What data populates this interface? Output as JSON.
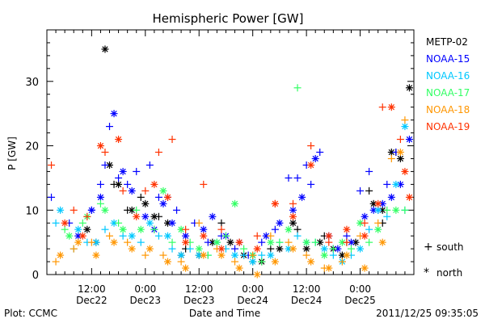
{
  "chart_data": {
    "type": "scatter",
    "title": "Hemispheric Power [GW]",
    "xlabel": "Date and Time",
    "ylabel": "P [GW]",
    "xlim_hours": [
      -22,
      60
    ],
    "ylim": [
      0,
      38
    ],
    "yticks": [
      0,
      10,
      20,
      30
    ],
    "xtick_labels": [
      {
        "h": -12,
        "time": "12:00",
        "date": "Dec22"
      },
      {
        "h": 0,
        "time": "0:00",
        "date": "Dec23"
      },
      {
        "h": 12,
        "time": "12:00",
        "date": "Dec23"
      },
      {
        "h": 24,
        "time": "0:00",
        "date": "Dec24"
      },
      {
        "h": 36,
        "time": "12:00",
        "date": "Dec24"
      },
      {
        "h": 48,
        "time": "0:00",
        "date": "Dec25"
      }
    ],
    "legend": {
      "placement": "right",
      "series_names": [
        "METP-02",
        "NOAA-15",
        "NOAA-16",
        "NOAA-17",
        "NOAA-18",
        "NOAA-19"
      ],
      "markers": [
        {
          "symbol": "+",
          "label": "south"
        },
        {
          "symbol": "*",
          "label": "north"
        }
      ]
    },
    "series": [
      {
        "name": "METP-02",
        "color": "#000000",
        "south": [
          [
            -7,
            14
          ],
          [
            -4,
            10
          ],
          [
            -1,
            12
          ],
          [
            3,
            9
          ],
          [
            9,
            4
          ],
          [
            17,
            8
          ],
          [
            24,
            2
          ],
          [
            28,
            4
          ],
          [
            34,
            7
          ],
          [
            40,
            6
          ],
          [
            45,
            5
          ],
          [
            50,
            13
          ],
          [
            53,
            8
          ],
          [
            56,
            19
          ]
        ],
        "north": [
          [
            -13,
            7
          ],
          [
            -11,
            5
          ],
          [
            -9,
            35
          ],
          [
            -8,
            17
          ],
          [
            -6,
            14
          ],
          [
            -3,
            10
          ],
          [
            0,
            11
          ],
          [
            2,
            9
          ],
          [
            5,
            8
          ],
          [
            8,
            3
          ],
          [
            12,
            3
          ],
          [
            15,
            5
          ],
          [
            19,
            5
          ],
          [
            22,
            3
          ],
          [
            26,
            2
          ],
          [
            30,
            4
          ],
          [
            33,
            8
          ],
          [
            36,
            4
          ],
          [
            39,
            5
          ],
          [
            42,
            4
          ],
          [
            44,
            3
          ],
          [
            47,
            5
          ],
          [
            51,
            11
          ],
          [
            53,
            10
          ],
          [
            55,
            19
          ],
          [
            57,
            18
          ],
          [
            59,
            29
          ]
        ]
      },
      {
        "name": "NOAA-15",
        "color": "#0000ff",
        "south": [
          [
            -21,
            12
          ],
          [
            -17,
            8
          ],
          [
            -12,
            10
          ],
          [
            -10,
            14
          ],
          [
            -9,
            17
          ],
          [
            -8,
            23
          ],
          [
            -6,
            15
          ],
          [
            -4,
            14
          ],
          [
            -2,
            16
          ],
          [
            1,
            17
          ],
          [
            3,
            12
          ],
          [
            5,
            12
          ],
          [
            7,
            10
          ],
          [
            11,
            8
          ],
          [
            14,
            5
          ],
          [
            17,
            6
          ],
          [
            20,
            4
          ],
          [
            23,
            3
          ],
          [
            26,
            5
          ],
          [
            29,
            7
          ],
          [
            32,
            15
          ],
          [
            34,
            15
          ],
          [
            36,
            17
          ],
          [
            37,
            14
          ],
          [
            39,
            19
          ],
          [
            42,
            4
          ],
          [
            45,
            6
          ],
          [
            48,
            13
          ],
          [
            50,
            16
          ],
          [
            52,
            10
          ],
          [
            54,
            14
          ],
          [
            56,
            19
          ]
        ],
        "north": [
          [
            -15,
            6
          ],
          [
            -12,
            10
          ],
          [
            -10,
            12
          ],
          [
            -7,
            25
          ],
          [
            -5,
            16
          ],
          [
            -3,
            13
          ],
          [
            0,
            9
          ],
          [
            2,
            7
          ],
          [
            4,
            11
          ],
          [
            6,
            8
          ],
          [
            9,
            6
          ],
          [
            13,
            7
          ],
          [
            15,
            9
          ],
          [
            18,
            6
          ],
          [
            21,
            5
          ],
          [
            24,
            3
          ],
          [
            27,
            6
          ],
          [
            30,
            8
          ],
          [
            33,
            10
          ],
          [
            35,
            12
          ],
          [
            38,
            18
          ],
          [
            41,
            6
          ],
          [
            43,
            4
          ],
          [
            46,
            5
          ],
          [
            49,
            9
          ],
          [
            51,
            10
          ],
          [
            53,
            11
          ],
          [
            55,
            12
          ],
          [
            57,
            14
          ],
          [
            59,
            21
          ]
        ]
      },
      {
        "name": "NOAA-16",
        "color": "#00c8ff",
        "south": [
          [
            -20,
            8
          ],
          [
            -16,
            4
          ],
          [
            -13,
            5
          ],
          [
            -9,
            7
          ],
          [
            -5,
            6
          ],
          [
            -1,
            5
          ],
          [
            3,
            6
          ],
          [
            6,
            4
          ],
          [
            10,
            4
          ],
          [
            14,
            3
          ],
          [
            18,
            4
          ],
          [
            22,
            3
          ],
          [
            26,
            3
          ],
          [
            30,
            5
          ],
          [
            34,
            6
          ],
          [
            38,
            5
          ],
          [
            42,
            3
          ],
          [
            46,
            3
          ],
          [
            50,
            7
          ],
          [
            54,
            9
          ],
          [
            58,
            10
          ]
        ],
        "north": [
          [
            -19,
            10
          ],
          [
            -15,
            7
          ],
          [
            -11,
            5
          ],
          [
            -7,
            8
          ],
          [
            -3,
            6
          ],
          [
            1,
            8
          ],
          [
            5,
            6
          ],
          [
            8,
            3
          ],
          [
            12,
            3
          ],
          [
            16,
            5
          ],
          [
            20,
            3
          ],
          [
            24,
            2
          ],
          [
            28,
            3
          ],
          [
            32,
            4
          ],
          [
            36,
            5
          ],
          [
            40,
            4
          ],
          [
            44,
            2
          ],
          [
            48,
            4
          ],
          [
            52,
            10
          ],
          [
            56,
            14
          ],
          [
            58,
            23
          ]
        ]
      },
      {
        "name": "NOAA-17",
        "color": "#32ff64",
        "south": [
          [
            -18,
            7
          ],
          [
            -14,
            8
          ],
          [
            -10,
            11
          ],
          [
            -6,
            8
          ],
          [
            -2,
            10
          ],
          [
            2,
            7
          ],
          [
            6,
            5
          ],
          [
            10,
            5
          ],
          [
            14,
            3
          ],
          [
            18,
            6
          ],
          [
            22,
            4
          ],
          [
            26,
            2
          ],
          [
            30,
            5
          ],
          [
            34,
            29
          ],
          [
            38,
            5
          ],
          [
            42,
            4
          ],
          [
            46,
            4
          ],
          [
            50,
            5
          ],
          [
            54,
            10
          ],
          [
            58,
            10
          ]
        ],
        "north": [
          [
            -17,
            6
          ],
          [
            -13,
            9
          ],
          [
            -9,
            10
          ],
          [
            -5,
            7
          ],
          [
            -1,
            7
          ],
          [
            4,
            13
          ],
          [
            8,
            7
          ],
          [
            12,
            4
          ],
          [
            16,
            5
          ],
          [
            20,
            11
          ],
          [
            24,
            3
          ],
          [
            28,
            5
          ],
          [
            32,
            7
          ],
          [
            36,
            5
          ],
          [
            40,
            3
          ],
          [
            44,
            5
          ],
          [
            48,
            8
          ],
          [
            52,
            7
          ],
          [
            56,
            10
          ]
        ]
      },
      {
        "name": "NOAA-18",
        "color": "#ff9600",
        "south": [
          [
            -20,
            2
          ],
          [
            -16,
            4
          ],
          [
            -12,
            5
          ],
          [
            -8,
            6
          ],
          [
            -4,
            5
          ],
          [
            0,
            3
          ],
          [
            4,
            3
          ],
          [
            8,
            2
          ],
          [
            12,
            8
          ],
          [
            16,
            4
          ],
          [
            20,
            2
          ],
          [
            24,
            3
          ],
          [
            28,
            6
          ],
          [
            32,
            5
          ],
          [
            36,
            3
          ],
          [
            40,
            1
          ],
          [
            44,
            2
          ],
          [
            48,
            6
          ],
          [
            52,
            8
          ],
          [
            55,
            18
          ],
          [
            58,
            24
          ]
        ],
        "north": [
          [
            -19,
            3
          ],
          [
            -15,
            5
          ],
          [
            -11,
            3
          ],
          [
            -7,
            5
          ],
          [
            -3,
            4
          ],
          [
            1,
            4
          ],
          [
            5,
            2
          ],
          [
            9,
            1
          ],
          [
            13,
            3
          ],
          [
            17,
            3
          ],
          [
            21,
            1
          ],
          [
            25,
            -1
          ],
          [
            29,
            2
          ],
          [
            33,
            4
          ],
          [
            37,
            2
          ],
          [
            41,
            1
          ],
          [
            45,
            3
          ],
          [
            49,
            1
          ],
          [
            53,
            5
          ],
          [
            57,
            19
          ]
        ]
      },
      {
        "name": "NOAA-19",
        "color": "#ff3200",
        "south": [
          [
            -21,
            17
          ],
          [
            -16,
            10
          ],
          [
            -13,
            9
          ],
          [
            -9,
            19
          ],
          [
            -5,
            13
          ],
          [
            0,
            13
          ],
          [
            3,
            19
          ],
          [
            6,
            21
          ],
          [
            9,
            7
          ],
          [
            13,
            14
          ],
          [
            17,
            7
          ],
          [
            21,
            5
          ],
          [
            25,
            6
          ],
          [
            29,
            11
          ],
          [
            33,
            11
          ],
          [
            37,
            20
          ],
          [
            41,
            5
          ],
          [
            45,
            5
          ],
          [
            49,
            8
          ],
          [
            53,
            26
          ],
          [
            57,
            21
          ]
        ],
        "north": [
          [
            -18,
            8
          ],
          [
            -14,
            6
          ],
          [
            -10,
            20
          ],
          [
            -6,
            21
          ],
          [
            -2,
            9
          ],
          [
            2,
            14
          ],
          [
            5,
            12
          ],
          [
            9,
            5
          ],
          [
            13,
            6
          ],
          [
            17,
            4
          ],
          [
            21,
            5
          ],
          [
            25,
            4
          ],
          [
            29,
            11
          ],
          [
            33,
            9
          ],
          [
            37,
            17
          ],
          [
            41,
            6
          ],
          [
            45,
            7
          ],
          [
            49,
            6
          ],
          [
            52,
            11
          ],
          [
            55,
            26
          ],
          [
            58,
            16
          ],
          [
            59,
            12
          ]
        ]
      }
    ]
  },
  "footer": {
    "credit": "Plot: CCMC",
    "timestamp": "2011/12/25 09:35:05"
  }
}
